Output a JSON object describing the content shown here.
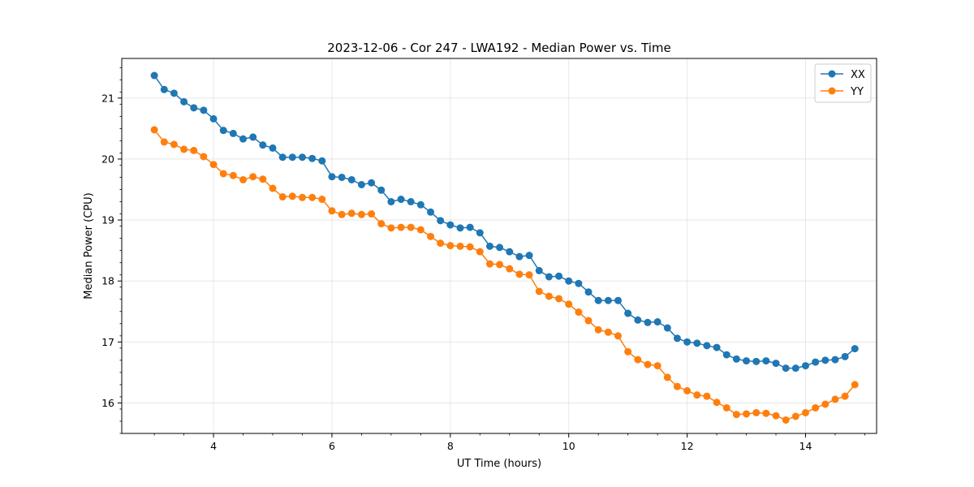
{
  "chart_data": {
    "type": "line",
    "title": "2023-12-06 - Cor 247 - LWA192 - Median Power vs. Time",
    "xlabel": "UT Time (hours)",
    "ylabel": "Median Power (CPU)",
    "xlim": [
      2.45,
      15.2
    ],
    "ylim": [
      15.5,
      21.65
    ],
    "xticks": [
      4,
      6,
      8,
      10,
      12,
      14
    ],
    "xtick_labels": [
      "4",
      "6",
      "8",
      "10",
      "12",
      "14"
    ],
    "yticks": [
      16,
      17,
      18,
      19,
      20,
      21
    ],
    "ytick_labels": [
      "16",
      "17",
      "18",
      "19",
      "20",
      "21"
    ],
    "grid": true,
    "legend_position": "top-right",
    "x": [
      3.0,
      3.167,
      3.333,
      3.5,
      3.667,
      3.833,
      4.0,
      4.167,
      4.333,
      4.5,
      4.667,
      4.833,
      5.0,
      5.167,
      5.333,
      5.5,
      5.667,
      5.833,
      6.0,
      6.167,
      6.333,
      6.5,
      6.667,
      6.833,
      7.0,
      7.167,
      7.333,
      7.5,
      7.667,
      7.833,
      8.0,
      8.167,
      8.333,
      8.5,
      8.667,
      8.833,
      9.0,
      9.167,
      9.333,
      9.5,
      9.667,
      9.833,
      10.0,
      10.167,
      10.333,
      10.5,
      10.667,
      10.833,
      11.0,
      11.167,
      11.333,
      11.5,
      11.667,
      11.833,
      12.0,
      12.167,
      12.333,
      12.5,
      12.667,
      12.833,
      13.0,
      13.167,
      13.333,
      13.5,
      13.667,
      13.833,
      14.0,
      14.167,
      14.333,
      14.5,
      14.667,
      14.833
    ],
    "series": [
      {
        "name": "XX",
        "color": "#1f77b4",
        "values": [
          21.37,
          21.14,
          21.08,
          20.94,
          20.84,
          20.8,
          20.66,
          20.47,
          20.42,
          20.33,
          20.36,
          20.23,
          20.18,
          20.03,
          20.03,
          20.03,
          20.01,
          19.97,
          19.71,
          19.7,
          19.66,
          19.58,
          19.61,
          19.49,
          19.3,
          19.34,
          19.3,
          19.25,
          19.13,
          18.99,
          18.92,
          18.87,
          18.88,
          18.79,
          18.57,
          18.55,
          18.48,
          18.4,
          18.42,
          18.17,
          18.07,
          18.08,
          18.0,
          17.96,
          17.82,
          17.68,
          17.68,
          17.68,
          17.47,
          17.36,
          17.32,
          17.33,
          17.23,
          17.06,
          17.0,
          16.98,
          16.94,
          16.91,
          16.79,
          16.72,
          16.69,
          16.68,
          16.69,
          16.65,
          16.57,
          16.57,
          16.61,
          16.67,
          16.7,
          16.71,
          16.76,
          16.89
        ]
      },
      {
        "name": "YY",
        "color": "#ff7f0e",
        "values": [
          20.48,
          20.28,
          20.24,
          20.16,
          20.14,
          20.04,
          19.91,
          19.76,
          19.73,
          19.66,
          19.71,
          19.67,
          19.52,
          19.38,
          19.39,
          19.37,
          19.37,
          19.34,
          19.15,
          19.09,
          19.11,
          19.09,
          19.1,
          18.94,
          18.87,
          18.88,
          18.88,
          18.84,
          18.73,
          18.62,
          18.58,
          18.57,
          18.56,
          18.48,
          18.28,
          18.27,
          18.2,
          18.11,
          18.1,
          17.83,
          17.75,
          17.71,
          17.62,
          17.49,
          17.35,
          17.2,
          17.16,
          17.1,
          16.84,
          16.71,
          16.63,
          16.61,
          16.42,
          16.27,
          16.2,
          16.13,
          16.11,
          16.01,
          15.92,
          15.81,
          15.82,
          15.84,
          15.83,
          15.79,
          15.72,
          15.78,
          15.84,
          15.92,
          15.98,
          16.06,
          16.11,
          16.3
        ]
      }
    ]
  }
}
